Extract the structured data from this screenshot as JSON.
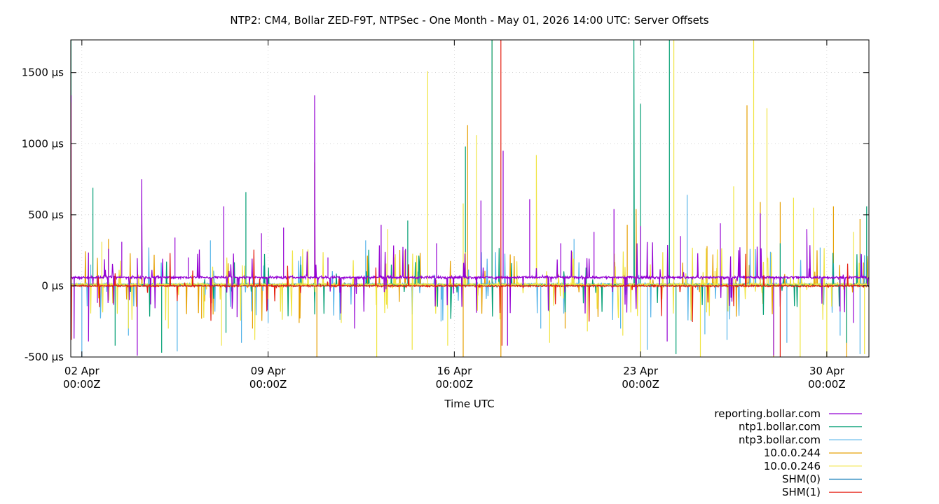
{
  "chart_data": {
    "type": "line",
    "title": "NTP2: CM4, Bollar ZED-F9T, NTPSec - One Month - May 01, 2026 14:00 UTC: Server Offsets",
    "xlabel": "Time UTC",
    "ylabel": "",
    "x_start": "2026-04-01T14:00Z",
    "x_end": "2026-05-01T14:00Z",
    "ylim": [
      -500,
      1730
    ],
    "y_unit": "µs",
    "grid": true,
    "legend_position": "bottom-right",
    "y_ticks": [
      {
        "value": -500,
        "label": "-500 µs"
      },
      {
        "value": 0,
        "label": "0 µs"
      },
      {
        "value": 500,
        "label": "500 µs"
      },
      {
        "value": 1000,
        "label": "1000 µs"
      },
      {
        "value": 1500,
        "label": "1500 µs"
      }
    ],
    "x_ticks": [
      {
        "date": "2026-04-02T00:00Z",
        "label1": "02 Apr",
        "label2": "00:00Z"
      },
      {
        "date": "2026-04-09T00:00Z",
        "label1": "09 Apr",
        "label2": "00:00Z"
      },
      {
        "date": "2026-04-16T00:00Z",
        "label1": "16 Apr",
        "label2": "00:00Z"
      },
      {
        "date": "2026-04-23T00:00Z",
        "label1": "23 Apr",
        "label2": "00:00Z"
      },
      {
        "date": "2026-04-30T00:00Z",
        "label1": "30 Apr",
        "label2": "00:00Z"
      }
    ],
    "series": [
      {
        "name": "reporting.bollar.com",
        "color": "#9400d3",
        "baseline": 60,
        "noise": 14,
        "density": 0.05,
        "spikes": [
          [
            "2026-04-01T14:20Z",
            1340
          ],
          [
            "2026-04-01T17:00Z",
            -370
          ],
          [
            "2026-04-02T06:00Z",
            -390
          ],
          [
            "2026-04-02T14:00Z",
            -120
          ],
          [
            "2026-04-03T00:00Z",
            260
          ],
          [
            "2026-04-03T12:00Z",
            310
          ],
          [
            "2026-04-04T02:00Z",
            -490
          ],
          [
            "2026-04-04T06:00Z",
            750
          ],
          [
            "2026-04-05T12:00Z",
            340
          ],
          [
            "2026-04-06T00:00Z",
            200
          ],
          [
            "2026-04-07T08:00Z",
            560
          ],
          [
            "2026-04-07T20:00Z",
            -220
          ],
          [
            "2026-04-08T18:00Z",
            370
          ],
          [
            "2026-04-09T14:00Z",
            410
          ],
          [
            "2026-04-10T18:00Z",
            1340
          ],
          [
            "2026-04-11T06:00Z",
            200
          ],
          [
            "2026-04-12T06:00Z",
            -300
          ],
          [
            "2026-04-13T06:00Z",
            430
          ],
          [
            "2026-04-14T04:00Z",
            260
          ],
          [
            "2026-04-15T08:00Z",
            300
          ],
          [
            "2026-04-17T00:00Z",
            600
          ],
          [
            "2026-04-17T20:00Z",
            950
          ],
          [
            "2026-04-18T00:00Z",
            -420
          ],
          [
            "2026-04-18T20:00Z",
            610
          ],
          [
            "2026-04-20T00:00Z",
            300
          ],
          [
            "2026-04-21T06:00Z",
            380
          ],
          [
            "2026-04-22T00:00Z",
            540
          ],
          [
            "2026-04-23T00:00Z",
            420
          ],
          [
            "2026-04-24T00:00Z",
            -390
          ],
          [
            "2026-04-24T12:00Z",
            350
          ],
          [
            "2026-04-26T00:00Z",
            440
          ],
          [
            "2026-04-27T12:00Z",
            510
          ],
          [
            "2026-04-28T00:00Z",
            -490
          ],
          [
            "2026-04-29T06:00Z",
            400
          ],
          [
            "2026-04-30T12:00Z",
            -180
          ],
          [
            "2026-05-01T00:00Z",
            -260
          ]
        ]
      },
      {
        "name": "ntp1.bollar.com",
        "color": "#009e73",
        "baseline": 8,
        "noise": 8,
        "density": 0.03,
        "spikes": [
          [
            "2026-04-01T14:10Z",
            1730
          ],
          [
            "2026-04-02T10:00Z",
            690
          ],
          [
            "2026-04-03T06:00Z",
            -420
          ],
          [
            "2026-04-05T00:00Z",
            -470
          ],
          [
            "2026-04-07T10:00Z",
            -330
          ],
          [
            "2026-04-08T04:00Z",
            660
          ],
          [
            "2026-04-10T18:00Z",
            -200
          ],
          [
            "2026-04-14T06:00Z",
            460
          ],
          [
            "2026-04-16T10:00Z",
            980
          ],
          [
            "2026-04-17T10:00Z",
            1730
          ],
          [
            "2026-04-22T18:00Z",
            1730
          ],
          [
            "2026-04-23T00:00Z",
            1280
          ],
          [
            "2026-04-24T02:00Z",
            1730
          ],
          [
            "2026-04-24T08:00Z",
            -480
          ],
          [
            "2026-04-28T06:00Z",
            300
          ],
          [
            "2026-04-30T18:00Z",
            -400
          ],
          [
            "2026-05-01T12:00Z",
            560
          ]
        ]
      },
      {
        "name": "ntp3.bollar.com",
        "color": "#56b4e9",
        "baseline": 12,
        "noise": 10,
        "density": 0.04,
        "spikes": [
          [
            "2026-04-02T00:00Z",
            -500
          ],
          [
            "2026-04-02T08:00Z",
            150
          ],
          [
            "2026-04-03T18:00Z",
            -350
          ],
          [
            "2026-04-05T14:00Z",
            -460
          ],
          [
            "2026-04-06T20:00Z",
            320
          ],
          [
            "2026-04-08T00:00Z",
            -400
          ],
          [
            "2026-04-09T00:00Z",
            -260
          ],
          [
            "2026-04-12T16:00Z",
            320
          ],
          [
            "2026-04-15T12:00Z",
            -250
          ],
          [
            "2026-04-19T06:00Z",
            -300
          ],
          [
            "2026-04-20T12:00Z",
            330
          ],
          [
            "2026-04-22T06:00Z",
            -300
          ],
          [
            "2026-04-23T06:00Z",
            -450
          ],
          [
            "2026-04-24T18:00Z",
            640
          ],
          [
            "2026-04-25T10:00Z",
            -340
          ],
          [
            "2026-04-26T06:00Z",
            -380
          ],
          [
            "2026-04-28T12:00Z",
            -400
          ],
          [
            "2026-04-29T18:00Z",
            270
          ],
          [
            "2026-04-30T12:00Z",
            -350
          ],
          [
            "2026-05-01T06:00Z",
            -480
          ]
        ]
      },
      {
        "name": "10.0.0.244",
        "color": "#e69f00",
        "baseline": 5,
        "noise": 10,
        "density": 0.03,
        "spikes": [
          [
            "2026-04-03T00:00Z",
            330
          ],
          [
            "2026-04-04T06:00Z",
            430
          ],
          [
            "2026-04-06T12:00Z",
            -230
          ],
          [
            "2026-04-08T10:00Z",
            -300
          ],
          [
            "2026-04-10T04:00Z",
            -260
          ],
          [
            "2026-04-10T18:00Z",
            870
          ],
          [
            "2026-04-10T20:00Z",
            -500
          ],
          [
            "2026-04-16T08:00Z",
            -500
          ],
          [
            "2026-04-16T12:00Z",
            1130
          ],
          [
            "2026-04-17T10:00Z",
            1730
          ],
          [
            "2026-04-17T18:00Z",
            -500
          ],
          [
            "2026-04-20T04:00Z",
            -300
          ],
          [
            "2026-04-22T12:00Z",
            430
          ],
          [
            "2026-04-22T20:00Z",
            540
          ],
          [
            "2026-04-25T12:00Z",
            280
          ],
          [
            "2026-04-27T00:00Z",
            1270
          ],
          [
            "2026-04-27T12:00Z",
            590
          ],
          [
            "2026-04-28T00:00Z",
            -500
          ],
          [
            "2026-04-28T06:00Z",
            590
          ],
          [
            "2026-04-30T06:00Z",
            560
          ],
          [
            "2026-04-30T18:00Z",
            -500
          ],
          [
            "2026-05-01T06:00Z",
            470
          ]
        ]
      },
      {
        "name": "10.0.0.246",
        "color": "#f0e442",
        "baseline": 10,
        "noise": 12,
        "density": 0.05,
        "spikes": [
          [
            "2026-04-02T18:00Z",
            310
          ],
          [
            "2026-04-03T18:00Z",
            -300
          ],
          [
            "2026-04-05T06:00Z",
            -300
          ],
          [
            "2026-04-07T06:00Z",
            -420
          ],
          [
            "2026-04-08T12:00Z",
            -380
          ],
          [
            "2026-04-11T18:00Z",
            -260
          ],
          [
            "2026-04-13T02:00Z",
            -500
          ],
          [
            "2026-04-13T12:00Z",
            400
          ],
          [
            "2026-04-14T10:00Z",
            -450
          ],
          [
            "2026-04-15T00:00Z",
            1510
          ],
          [
            "2026-04-15T18:00Z",
            -420
          ],
          [
            "2026-04-16T08:00Z",
            580
          ],
          [
            "2026-04-16T20:00Z",
            1060
          ],
          [
            "2026-04-19T02:00Z",
            920
          ],
          [
            "2026-04-19T14:00Z",
            -400
          ],
          [
            "2026-04-21T00:00Z",
            -320
          ],
          [
            "2026-04-22T08:00Z",
            -350
          ],
          [
            "2026-04-23T00:00Z",
            -500
          ],
          [
            "2026-04-24T06:00Z",
            1730
          ],
          [
            "2026-04-25T06:00Z",
            -500
          ],
          [
            "2026-04-26T12:00Z",
            700
          ],
          [
            "2026-04-27T06:00Z",
            1730
          ],
          [
            "2026-04-27T18:00Z",
            1250
          ],
          [
            "2026-04-28T18:00Z",
            620
          ],
          [
            "2026-04-29T00:00Z",
            -500
          ],
          [
            "2026-04-29T12:00Z",
            550
          ],
          [
            "2026-04-30T00:00Z",
            -500
          ],
          [
            "2026-05-01T00:00Z",
            380
          ],
          [
            "2026-05-01T10:00Z",
            -480
          ]
        ]
      },
      {
        "name": "SHM(0)",
        "color": "#0072b2",
        "baseline": 0,
        "noise": 3,
        "density": 0,
        "spikes": []
      },
      {
        "name": "SHM(1)",
        "color": "#e51e10",
        "baseline": 0,
        "noise": 9,
        "density": 0.02,
        "spikes": [
          [
            "2026-04-01T14:05Z",
            1290
          ],
          [
            "2026-04-01T14:30Z",
            -380
          ],
          [
            "2026-04-17T18:00Z",
            1730
          ],
          [
            "2026-04-17T19:00Z",
            -420
          ],
          [
            "2026-04-28T06:00Z",
            -500
          ]
        ]
      }
    ]
  }
}
